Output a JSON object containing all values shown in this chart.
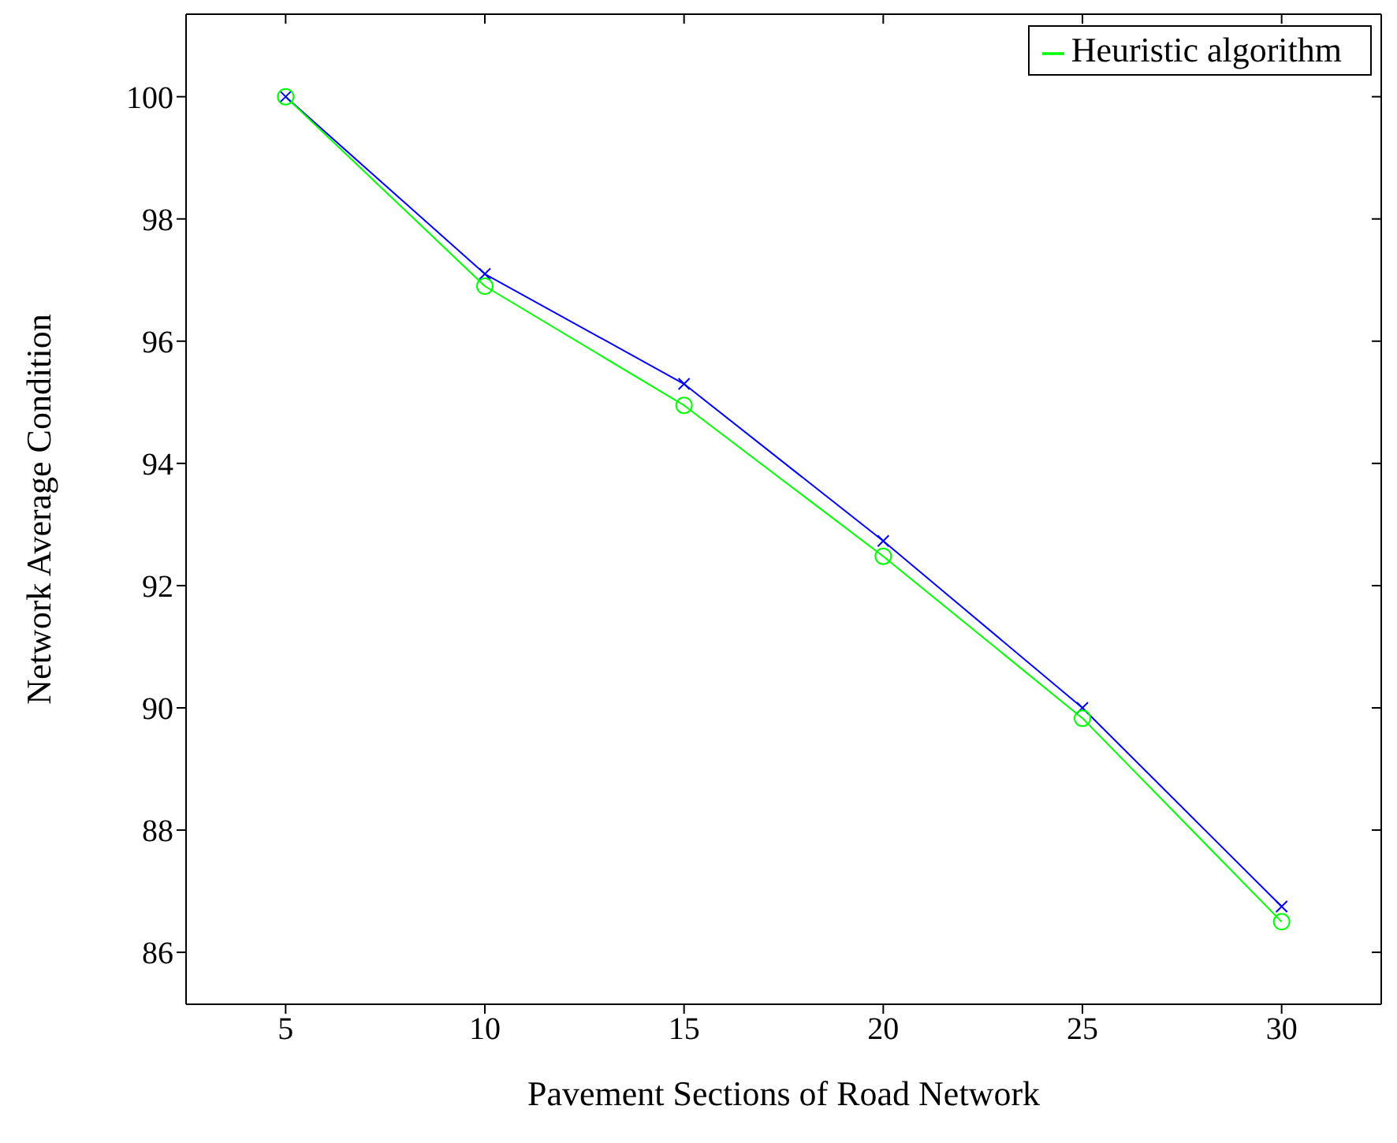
{
  "chart_data": {
    "type": "line",
    "xlabel": "Pavement Sections of Road Network",
    "ylabel": "Network Average Condition",
    "x": [
      5,
      10,
      15,
      20,
      25,
      30
    ],
    "series": [
      {
        "color": "#0000ff",
        "marker": "cross",
        "values": [
          100,
          97.1,
          95.3,
          92.73,
          90.0,
          86.75
        ]
      },
      {
        "name": "Heuristic algorithm",
        "color": "#00ff00",
        "marker": "circle",
        "values": [
          100,
          96.9,
          94.95,
          92.48,
          89.83,
          86.5
        ]
      }
    ],
    "xlim": [
      2.5,
      32.5
    ],
    "xticks": [
      5,
      10,
      15,
      20,
      25,
      30
    ],
    "ylim": [
      85.15,
      101.35
    ],
    "yticks": [
      86,
      88,
      90,
      92,
      94,
      96,
      98,
      100
    ],
    "legend": "top right",
    "line_style": "solid"
  }
}
